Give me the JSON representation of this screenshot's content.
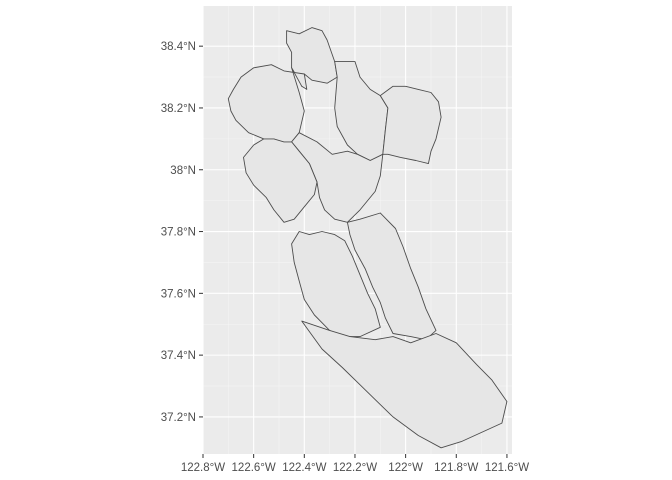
{
  "chart_data": {
    "type": "map",
    "title": "",
    "xlabel": "",
    "ylabel": "",
    "xlim": [
      -122.8,
      -121.58
    ],
    "ylim": [
      37.08,
      38.53
    ],
    "grid": true,
    "x_ticks": [
      {
        "value": -122.8,
        "label": "122.8°W"
      },
      {
        "value": -122.6,
        "label": "122.6°W"
      },
      {
        "value": -122.4,
        "label": "122.4°W"
      },
      {
        "value": -122.2,
        "label": "122.2°W"
      },
      {
        "value": -122.0,
        "label": "122°W"
      },
      {
        "value": -121.8,
        "label": "121.8°W"
      },
      {
        "value": -121.6,
        "label": "121.6°W"
      }
    ],
    "y_ticks": [
      {
        "value": 37.2,
        "label": "37.2°N"
      },
      {
        "value": 37.4,
        "label": "37.4°N"
      },
      {
        "value": 37.6,
        "label": "37.6°N"
      },
      {
        "value": 37.8,
        "label": "37.8°N"
      },
      {
        "value": 38.0,
        "label": "38°N"
      },
      {
        "value": 38.2,
        "label": "38.2°N"
      },
      {
        "value": 38.4,
        "label": "38.4°N"
      }
    ],
    "regions": [
      {
        "name": "",
        "coords": [
          [
            -122.47,
            38.45
          ],
          [
            -122.42,
            38.44
          ],
          [
            -122.37,
            38.46
          ],
          [
            -122.33,
            38.45
          ],
          [
            -122.31,
            38.42
          ],
          [
            -122.28,
            38.35
          ],
          [
            -122.27,
            38.3
          ],
          [
            -122.31,
            38.28
          ],
          [
            -122.37,
            38.29
          ],
          [
            -122.4,
            38.31
          ],
          [
            -122.41,
            38.27
          ],
          [
            -122.42,
            38.29
          ],
          [
            -122.45,
            38.33
          ],
          [
            -122.45,
            38.38
          ],
          [
            -122.47,
            38.41
          ]
        ]
      },
      {
        "name": "",
        "coords": [
          [
            -122.45,
            38.33
          ],
          [
            -122.41,
            38.27
          ],
          [
            -122.39,
            38.26
          ],
          [
            -122.4,
            38.31
          ],
          [
            -122.48,
            38.32
          ],
          [
            -122.53,
            38.34
          ],
          [
            -122.6,
            38.33
          ],
          [
            -122.65,
            38.3
          ],
          [
            -122.68,
            38.26
          ],
          [
            -122.7,
            38.23
          ],
          [
            -122.69,
            38.19
          ],
          [
            -122.67,
            38.16
          ],
          [
            -122.62,
            38.12
          ],
          [
            -122.56,
            38.1
          ],
          [
            -122.52,
            38.1
          ],
          [
            -122.5,
            38.08
          ],
          [
            -122.45,
            38.09
          ],
          [
            -122.42,
            38.12
          ],
          [
            -122.4,
            38.19
          ],
          [
            -122.42,
            38.25
          ]
        ]
      },
      {
        "name": "",
        "coords": [
          [
            -122.28,
            38.35
          ],
          [
            -122.2,
            38.35
          ],
          [
            -122.18,
            38.3
          ],
          [
            -122.14,
            38.26
          ],
          [
            -122.1,
            38.24
          ],
          [
            -122.07,
            38.2
          ],
          [
            -122.08,
            38.13
          ],
          [
            -122.09,
            38.05
          ],
          [
            -122.14,
            38.03
          ],
          [
            -122.19,
            38.05
          ],
          [
            -122.23,
            38.08
          ],
          [
            -122.27,
            38.14
          ],
          [
            -122.28,
            38.2
          ],
          [
            -122.27,
            38.3
          ]
        ]
      },
      {
        "name": "",
        "coords": [
          [
            -122.1,
            38.24
          ],
          [
            -122.05,
            38.27
          ],
          [
            -122.0,
            38.27
          ],
          [
            -121.95,
            38.26
          ],
          [
            -121.9,
            38.25
          ],
          [
            -121.87,
            38.22
          ],
          [
            -121.86,
            38.17
          ],
          [
            -121.88,
            38.1
          ],
          [
            -121.9,
            38.06
          ],
          [
            -121.91,
            38.02
          ],
          [
            -121.96,
            38.03
          ],
          [
            -122.02,
            38.04
          ],
          [
            -122.07,
            38.05
          ],
          [
            -122.09,
            38.05
          ],
          [
            -122.08,
            38.13
          ],
          [
            -122.07,
            38.2
          ]
        ]
      },
      {
        "name": "",
        "coords": [
          [
            -122.42,
            38.12
          ],
          [
            -122.35,
            38.09
          ],
          [
            -122.29,
            38.05
          ],
          [
            -122.23,
            38.06
          ],
          [
            -122.19,
            38.05
          ],
          [
            -122.14,
            38.03
          ],
          [
            -122.09,
            38.05
          ],
          [
            -122.1,
            37.98
          ],
          [
            -122.12,
            37.93
          ],
          [
            -122.18,
            37.87
          ],
          [
            -122.23,
            37.83
          ],
          [
            -122.28,
            37.84
          ],
          [
            -122.32,
            37.87
          ],
          [
            -122.34,
            37.91
          ],
          [
            -122.35,
            37.96
          ],
          [
            -122.38,
            38.02
          ],
          [
            -122.42,
            38.06
          ],
          [
            -122.45,
            38.09
          ]
        ]
      },
      {
        "name": "",
        "coords": [
          [
            -122.52,
            38.1
          ],
          [
            -122.48,
            38.09
          ],
          [
            -122.45,
            38.09
          ],
          [
            -122.42,
            38.06
          ],
          [
            -122.38,
            38.02
          ],
          [
            -122.35,
            37.96
          ],
          [
            -122.36,
            37.92
          ],
          [
            -122.4,
            37.88
          ],
          [
            -122.44,
            37.84
          ],
          [
            -122.48,
            37.83
          ],
          [
            -122.52,
            37.87
          ],
          [
            -122.55,
            37.91
          ],
          [
            -122.6,
            37.95
          ],
          [
            -122.63,
            37.99
          ],
          [
            -122.64,
            38.04
          ],
          [
            -122.6,
            38.08
          ],
          [
            -122.56,
            38.1
          ]
        ]
      },
      {
        "name": "",
        "coords": [
          [
            -122.23,
            37.83
          ],
          [
            -122.18,
            37.84
          ],
          [
            -122.1,
            37.86
          ],
          [
            -122.04,
            37.81
          ],
          [
            -122.01,
            37.75
          ],
          [
            -121.98,
            37.68
          ],
          [
            -121.95,
            37.62
          ],
          [
            -121.92,
            37.55
          ],
          [
            -121.88,
            37.48
          ],
          [
            -121.92,
            37.45
          ],
          [
            -121.98,
            37.46
          ],
          [
            -122.05,
            37.47
          ],
          [
            -122.08,
            37.52
          ],
          [
            -122.1,
            37.57
          ],
          [
            -122.13,
            37.62
          ],
          [
            -122.16,
            37.68
          ],
          [
            -122.2,
            37.74
          ],
          [
            -122.22,
            37.79
          ]
        ]
      },
      {
        "name": "",
        "coords": [
          [
            -122.42,
            37.8
          ],
          [
            -122.38,
            37.79
          ],
          [
            -122.33,
            37.8
          ],
          [
            -122.28,
            37.79
          ],
          [
            -122.24,
            37.77
          ],
          [
            -122.21,
            37.72
          ],
          [
            -122.18,
            37.66
          ],
          [
            -122.15,
            37.6
          ],
          [
            -122.12,
            37.55
          ],
          [
            -122.1,
            37.49
          ],
          [
            -122.18,
            37.46
          ],
          [
            -122.25,
            37.46
          ],
          [
            -122.3,
            37.48
          ],
          [
            -122.36,
            37.53
          ],
          [
            -122.4,
            37.58
          ],
          [
            -122.42,
            37.64
          ],
          [
            -122.44,
            37.7
          ],
          [
            -122.45,
            37.76
          ]
        ]
      },
      {
        "name": "",
        "coords": [
          [
            -122.41,
            37.51
          ],
          [
            -122.3,
            37.48
          ],
          [
            -122.22,
            37.46
          ],
          [
            -122.12,
            37.45
          ],
          [
            -122.05,
            37.46
          ],
          [
            -121.98,
            37.44
          ],
          [
            -121.88,
            37.47
          ],
          [
            -121.8,
            37.44
          ],
          [
            -121.72,
            37.37
          ],
          [
            -121.66,
            37.32
          ],
          [
            -121.6,
            37.25
          ],
          [
            -121.62,
            37.18
          ],
          [
            -121.7,
            37.15
          ],
          [
            -121.78,
            37.12
          ],
          [
            -121.86,
            37.1
          ],
          [
            -121.95,
            37.14
          ],
          [
            -122.05,
            37.2
          ],
          [
            -122.15,
            37.28
          ],
          [
            -122.25,
            37.36
          ],
          [
            -122.33,
            37.42
          ]
        ]
      }
    ]
  }
}
